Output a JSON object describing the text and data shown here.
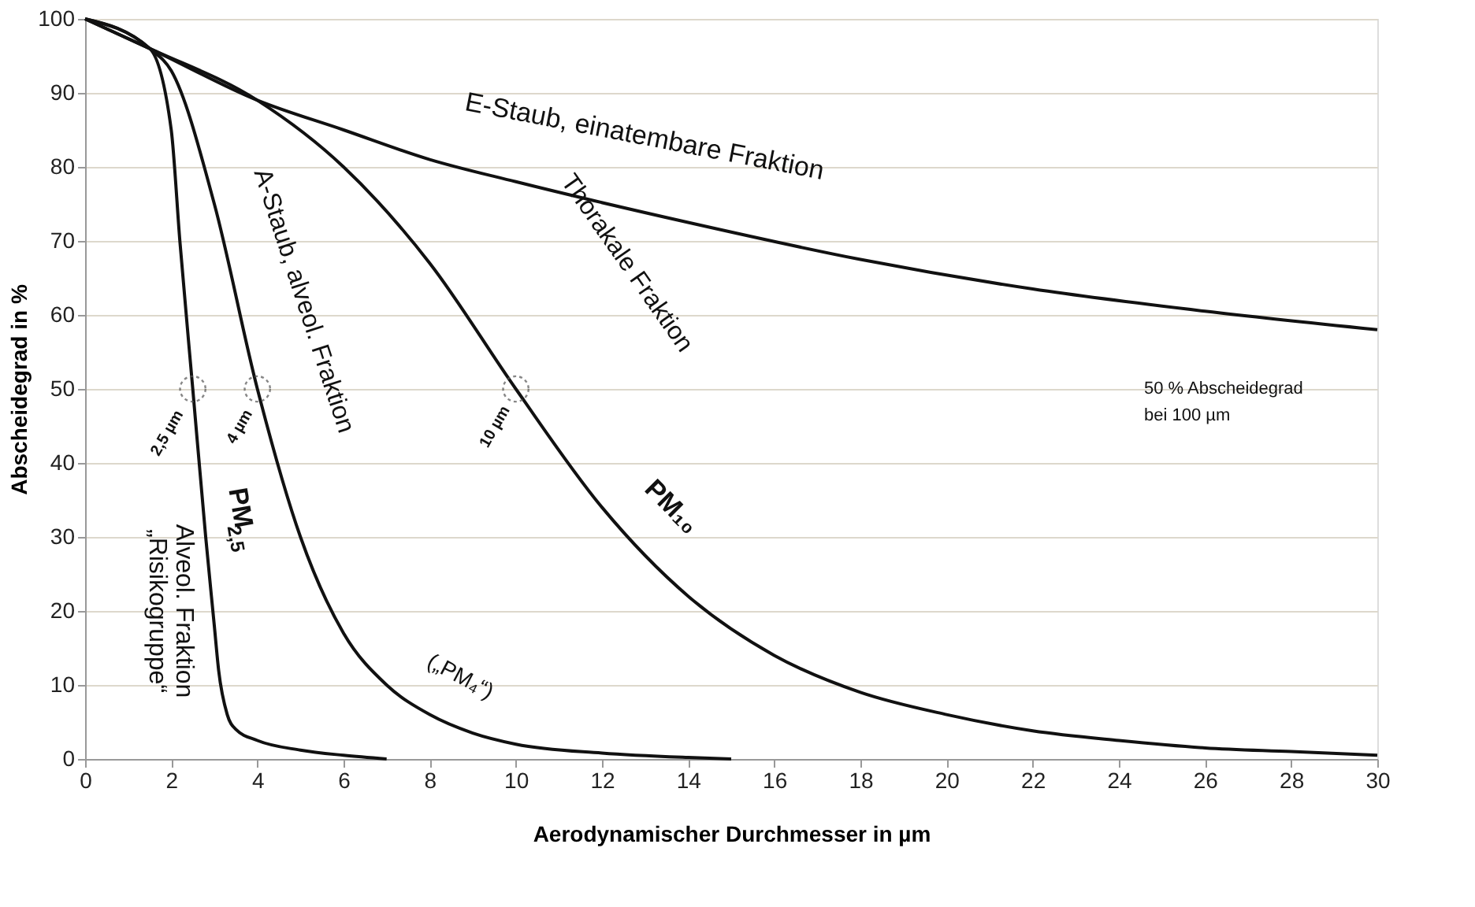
{
  "chart_data": {
    "type": "line",
    "xlabel": "Aerodynamischer Durchmesser in µm",
    "ylabel": "Abscheidegrad in %",
    "xlim": [
      0,
      30
    ],
    "xticks": [
      0,
      2,
      4,
      6,
      8,
      10,
      12,
      14,
      16,
      18,
      20,
      22,
      24,
      26,
      28,
      30
    ],
    "ylim": [
      0,
      100
    ],
    "yticks": [
      0,
      10,
      20,
      30,
      40,
      50,
      60,
      70,
      80,
      90,
      100
    ],
    "grid": "y",
    "marker": "none",
    "line_style": "solid",
    "series": [
      {
        "color": "#111111",
        "x": [
          0,
          1.5,
          4,
          6,
          8,
          10,
          14,
          18,
          22,
          26,
          30
        ],
        "values": [
          100,
          96,
          89,
          85,
          81,
          78,
          72.5,
          67.5,
          63.5,
          60.5,
          58
        ]
      },
      {
        "color": "#111111",
        "x": [
          0,
          1.5,
          4,
          6,
          8,
          10,
          12,
          14,
          16,
          18,
          20,
          22,
          24,
          26,
          28,
          30
        ],
        "values": [
          100,
          96,
          89,
          80,
          67,
          50,
          34,
          22,
          14,
          9,
          6,
          3.8,
          2.5,
          1.5,
          1,
          0.5
        ]
      },
      {
        "color": "#111111",
        "x": [
          0,
          1.5,
          2,
          3,
          4,
          5,
          6,
          7,
          8,
          9,
          10,
          12,
          14,
          15
        ],
        "values": [
          100,
          96,
          93,
          75,
          50,
          30,
          17,
          10,
          6,
          3.5,
          2,
          0.8,
          0.2,
          0
        ]
      },
      {
        "color": "#111111",
        "x": [
          0,
          1.5,
          2,
          2.2,
          2.5,
          2.8,
          3,
          3.1,
          3.3,
          3.5,
          4,
          5,
          6,
          7
        ],
        "values": [
          100,
          96,
          85,
          70,
          50,
          30,
          18,
          12,
          6,
          4,
          2.5,
          1.2,
          0.5,
          0
        ]
      },
      {
        "type": "scatter",
        "marker": "circle",
        "line_style": "dotted",
        "color": "#555555",
        "x": [
          2.5,
          4,
          10
        ],
        "values": [
          50,
          50,
          50
        ]
      }
    ],
    "annotations": [
      "E-Staub, einatembare Fraktion",
      "Thorakale Fraktion",
      "PM₁₀",
      "A-Staub, alveol. Fraktion",
      "(„PM₄“)",
      "PM$_{2,5}$",
      "Alveol. Fraktion\n„Risikogruppe“",
      "2,5 µm",
      "4 µm",
      "10 µm",
      "50 % Abscheidegrad\nbei 100 µm"
    ]
  }
}
